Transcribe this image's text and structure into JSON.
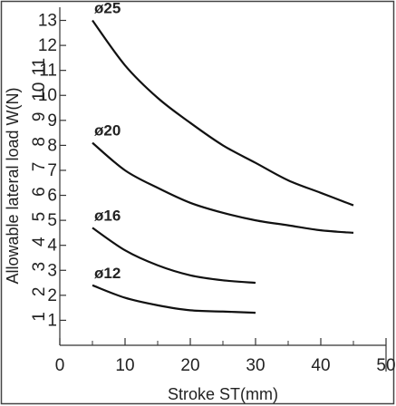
{
  "chart_data": {
    "type": "line",
    "xlabel": "Stroke ST(mm)",
    "ylabel": "Allowable lateral load W(N)",
    "xlim": [
      0,
      50
    ],
    "ylim": [
      0,
      13.2
    ],
    "xticks": [
      0,
      10,
      20,
      30,
      40,
      50
    ],
    "yticks": [
      1,
      2,
      3,
      4,
      5,
      6,
      7,
      8,
      9,
      10,
      11,
      12,
      13
    ],
    "grid": false,
    "series": [
      {
        "name": "ø25",
        "x": [
          5,
          10,
          15,
          20,
          25,
          30,
          35,
          40,
          45
        ],
        "y": [
          13.0,
          11.2,
          9.9,
          8.9,
          8.0,
          7.3,
          6.6,
          6.1,
          5.6
        ]
      },
      {
        "name": "ø20",
        "x": [
          5,
          10,
          15,
          20,
          25,
          30,
          35,
          40,
          45
        ],
        "y": [
          8.1,
          7.0,
          6.3,
          5.7,
          5.3,
          5.0,
          4.8,
          4.6,
          4.5
        ]
      },
      {
        "name": "ø16",
        "x": [
          5,
          10,
          15,
          20,
          25,
          30
        ],
        "y": [
          4.7,
          3.8,
          3.2,
          2.8,
          2.6,
          2.5
        ]
      },
      {
        "name": "ø12",
        "x": [
          5,
          10,
          15,
          20,
          25,
          30
        ],
        "y": [
          2.4,
          1.9,
          1.6,
          1.4,
          1.35,
          1.3
        ]
      }
    ]
  }
}
